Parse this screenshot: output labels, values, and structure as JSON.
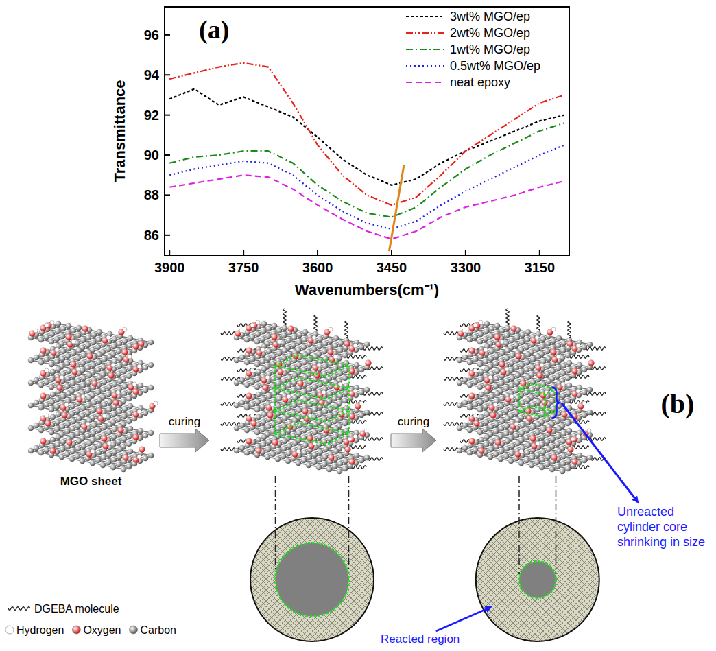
{
  "chart_data": {
    "type": "line",
    "panel_label": "(a)",
    "x_label": "Wavenumbers(cm⁻¹)",
    "y_label": "Transmittance",
    "x": [
      3900,
      3850,
      3800,
      3750,
      3700,
      3650,
      3600,
      3550,
      3500,
      3450,
      3400,
      3350,
      3300,
      3250,
      3200,
      3150,
      3100
    ],
    "xlim": [
      3910,
      3090
    ],
    "xticks": [
      3900,
      3750,
      3600,
      3450,
      3300,
      3150
    ],
    "ylim": [
      85,
      97.4
    ],
    "yticks": [
      86,
      88,
      90,
      92,
      94,
      96
    ],
    "grid": false,
    "legend": "upper right",
    "series": [
      {
        "name": "3wt% MGO/ep",
        "color": "#000000",
        "line_style": "shortdash",
        "values": [
          92.8,
          93.3,
          92.5,
          92.9,
          92.4,
          91.9,
          90.9,
          89.8,
          89.0,
          88.5,
          88.8,
          89.6,
          90.2,
          90.7,
          91.2,
          91.7,
          92.0
        ]
      },
      {
        "name": "2wt% MGO/ep",
        "color": "#e8211a",
        "line_style": "dashdotdot",
        "values": [
          93.8,
          94.1,
          94.4,
          94.6,
          94.4,
          92.6,
          90.5,
          89.0,
          88.0,
          87.5,
          87.9,
          89.0,
          90.2,
          91.0,
          91.8,
          92.6,
          93.0
        ]
      },
      {
        "name": "1wt% MGO/ep",
        "color": "#1a8a1a",
        "line_style": "dashdot",
        "values": [
          89.6,
          89.9,
          90.0,
          90.2,
          90.2,
          89.6,
          88.5,
          87.7,
          87.1,
          86.9,
          87.4,
          88.4,
          89.3,
          90.0,
          90.6,
          91.2,
          91.6
        ]
      },
      {
        "name": "0.5wt% MGO/ep",
        "color": "#2020e0",
        "line_style": "dot",
        "values": [
          89.0,
          89.3,
          89.5,
          89.7,
          89.6,
          89.0,
          88.0,
          87.2,
          86.6,
          86.3,
          86.7,
          87.5,
          88.2,
          88.8,
          89.4,
          90.0,
          90.5
        ]
      },
      {
        "name": "neat epoxy",
        "color": "#e020e0",
        "line_style": "dash",
        "values": [
          88.4,
          88.6,
          88.8,
          89.0,
          88.9,
          88.3,
          87.5,
          86.8,
          86.2,
          85.8,
          86.2,
          86.9,
          87.4,
          87.7,
          88.0,
          88.4,
          88.7
        ]
      }
    ],
    "guide_line": {
      "x": [
        3455,
        3425
      ],
      "y": [
        85.2,
        89.5
      ],
      "color": "#e0851a"
    }
  },
  "diagram": {
    "panel_label": "(b)",
    "nodes": [
      {
        "label": "MGO sheet"
      }
    ],
    "arrows": [
      {
        "label": "curing"
      },
      {
        "label": "curing"
      }
    ],
    "callouts": [
      {
        "lines": [
          "Unreacted",
          "cylinder core",
          "shrinking in size"
        ],
        "color": "#1a1aff"
      },
      {
        "lines": [
          "Reacted region"
        ],
        "color": "#1a1aff"
      }
    ],
    "legend": [
      {
        "label": "DGEBA molecule",
        "symbol": "wave",
        "color": "#222222"
      },
      {
        "label": "Hydrogen",
        "color": "#ffffff"
      },
      {
        "label": "Oxygen",
        "color": "#d01010"
      },
      {
        "label": "Carbon",
        "color": "#555555"
      }
    ]
  }
}
